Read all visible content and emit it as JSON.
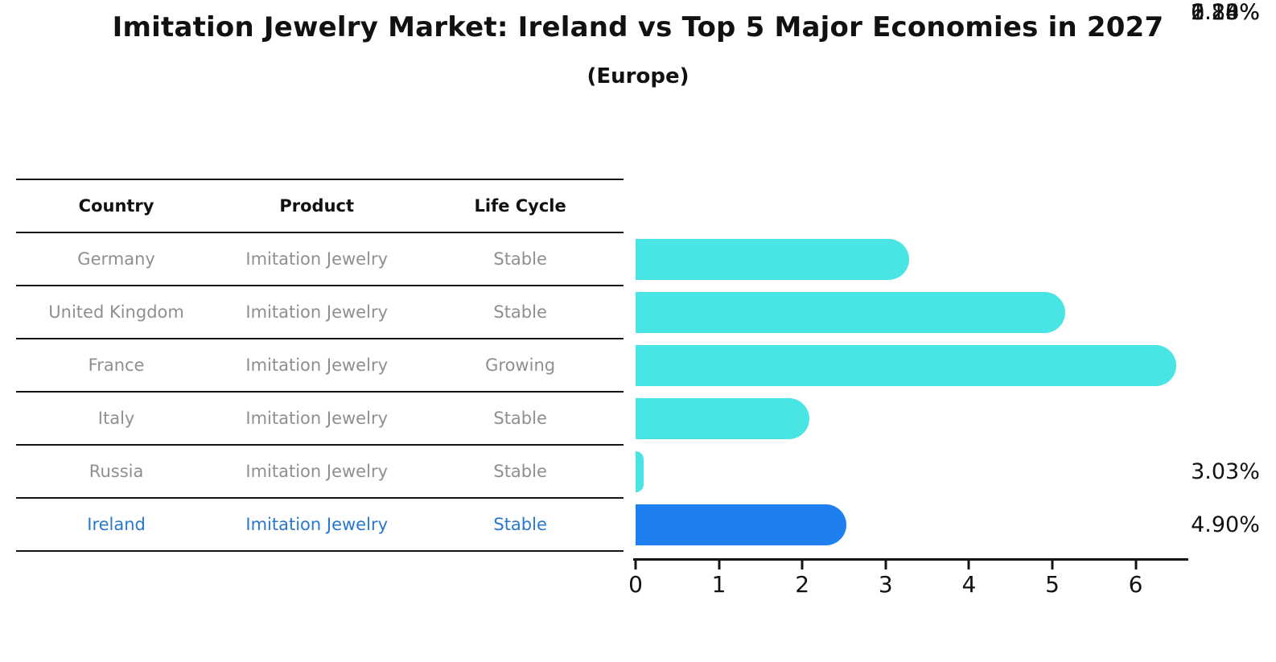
{
  "header": {
    "title": "Imitation Jewelry Market: Ireland vs Top 5 Major Economies in 2027",
    "subtitle": "(Europe)"
  },
  "table": {
    "columns": [
      "Country",
      "Product",
      "Life Cycle"
    ],
    "rows": [
      {
        "country": "Germany",
        "product": "Imitation Jewelry",
        "life_cycle": "Stable",
        "highlight": false
      },
      {
        "country": "United Kingdom",
        "product": "Imitation Jewelry",
        "life_cycle": "Stable",
        "highlight": false
      },
      {
        "country": "France",
        "product": "Imitation Jewelry",
        "life_cycle": "Growing",
        "highlight": false
      },
      {
        "country": "Italy",
        "product": "Imitation Jewelry",
        "life_cycle": "Stable",
        "highlight": false
      },
      {
        "country": "Russia",
        "product": "Imitation Jewelry",
        "life_cycle": "Stable",
        "highlight": false
      },
      {
        "country": "Ireland",
        "product": "Imitation Jewelry",
        "life_cycle": "Stable",
        "highlight": true
      }
    ]
  },
  "chart_data": {
    "type": "bar",
    "orientation": "horizontal",
    "title": "Imitation Jewelry Market: Ireland vs Top 5 Major Economies in 2027 (Europe)",
    "categories": [
      "Germany",
      "United Kingdom",
      "France",
      "Italy",
      "Russia",
      "Ireland"
    ],
    "values": [
      3.03,
      4.9,
      6.24,
      1.83,
      0.1,
      2.28
    ],
    "value_labels": [
      "3.03%",
      "4.90%",
      "6.24%",
      "1.83%",
      "0.10%",
      "2.28%"
    ],
    "x_ticks": [
      0,
      1,
      2,
      3,
      4,
      5,
      6
    ],
    "xlim": [
      0,
      6.62
    ],
    "xlabel": "",
    "ylabel": "",
    "grid": false,
    "legend": false,
    "highlight_index": 5,
    "colors": {
      "bar": "#48E5E4",
      "highlight": "#1E80F0",
      "highlight_text": "#2878CE",
      "axis": "#141414",
      "text": "#111111",
      "muted_text": "#8F8F8F"
    }
  }
}
